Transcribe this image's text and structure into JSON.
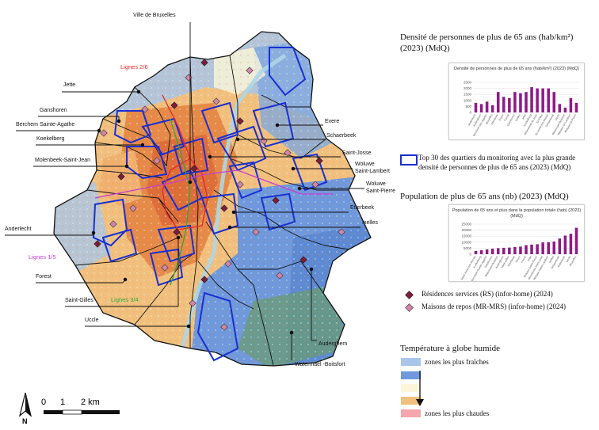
{
  "municipalities": [
    {
      "id": "ville-de-bruxelles",
      "name": "Ville de Bruxelles"
    },
    {
      "id": "jette",
      "name": "Jette"
    },
    {
      "id": "ganshoren",
      "name": "Ganshoren"
    },
    {
      "id": "berchem-sainte-agathe",
      "name": "Berchem Sainte-Agathe"
    },
    {
      "id": "koekelberg",
      "name": "Koekelberg"
    },
    {
      "id": "molenbeek-saint-jean",
      "name": "Molenbeek-Saint-Jean"
    },
    {
      "id": "anderlecht",
      "name": "Anderlecht"
    },
    {
      "id": "forest",
      "name": "Forest"
    },
    {
      "id": "saint-gilles",
      "name": "Saint-Gilles"
    },
    {
      "id": "uccle",
      "name": "Uccle"
    },
    {
      "id": "evere",
      "name": "Evere"
    },
    {
      "id": "schaerbeek",
      "name": "Schaerbeek"
    },
    {
      "id": "saint-josse",
      "name": "Saint-Josse"
    },
    {
      "id": "woluwe-saint-lambert",
      "name": "Woluwe\nSaint-Lambert"
    },
    {
      "id": "woluwe-saint-pierre",
      "name": "Woluwe\nSaint-Pierre"
    },
    {
      "id": "etterbeek",
      "name": "Etterbeek"
    },
    {
      "id": "ixelles",
      "name": "Ixelles"
    },
    {
      "id": "auderghem",
      "name": "Auderghem"
    },
    {
      "id": "watermael-boitsfort",
      "name": "Watermael -Boitsfort"
    }
  ],
  "metro_lines": [
    {
      "id": "lignes-2-6",
      "name": "Lignes 2/6",
      "color": "#e8262a"
    },
    {
      "id": "lignes-1-5",
      "name": "Lignes 1/5",
      "color": "#c53fd0"
    },
    {
      "id": "lignes-3-4",
      "name": "Lignes 3/4",
      "color": "#2ea83a"
    }
  ],
  "scale_bar": {
    "ticks": [
      "0",
      "1",
      "2 km"
    ]
  },
  "north_arrow": {
    "label": "N"
  },
  "density_section": {
    "title": "Densité de personnes de plus de 65 ans (hab/km²) (2023) (MdQ)",
    "chart_data": {
      "type": "bar",
      "title": "Densité de personnes de plus de 65 ans (hab/km²) (2023) (MdQ)",
      "yticks": [
        "2500",
        "2000",
        "1500",
        "1000",
        "500",
        "0"
      ],
      "ylim": [
        0,
        2500
      ],
      "bar_color": "#8e1a86",
      "categories": [
        "Anderlecht",
        "Auderghem",
        "Berchem-Ste-Agathe",
        "Bruxelles",
        "Etterbeek",
        "Evere",
        "Forest",
        "Ganshoren",
        "Ixelles",
        "Jette",
        "Koekelberg",
        "Molenbeek-St-Jean",
        "St-Gilles",
        "St-Josse-ten-Noode",
        "Schaerbeek",
        "Uccle",
        "Watermael-Boitsfort",
        "Woluwe-St-Lambert",
        "Woluwe-St-Pierre"
      ],
      "values": [
        800,
        700,
        900,
        600,
        1700,
        1300,
        1200,
        1700,
        1600,
        1700,
        2100,
        2000,
        2000,
        2000,
        1700,
        700,
        400,
        1200,
        800
      ]
    }
  },
  "top30_legend": "Top 30 des quartiers du monitoring avec la plus grande densité de personnes de plus de 65 ans (2023) (MdQ)",
  "population_section": {
    "title": "Population de plus de 65 ans (nb) (2023) (MdQ)",
    "chart_data": {
      "type": "bar",
      "title": "Population de 65 ans et plus dans la population totale (hab) (2023) (MdQ)",
      "yticks": [
        "25000",
        "20000",
        "15000",
        "10000",
        "5000",
        "0"
      ],
      "ylim": [
        0,
        25000
      ],
      "bar_color": "#8e1a86",
      "categories": [
        "Saint-Josse-ten-Noode",
        "Koekelberg",
        "Berchem-Sainte-Agathe",
        "Ganshoren",
        "Watermael-Boitsfort",
        "Auderghem",
        "Saint-Gilles",
        "Etterbeek",
        "Evere",
        "Forest",
        "Jette",
        "Woluwe-Saint-Pierre",
        "Molenbeek-Saint-Jean",
        "Woluwe-Saint-Lambert",
        "Ixelles",
        "Schaerbeek",
        "Anderlecht",
        "Uccle",
        "Bruxelles"
      ],
      "values": [
        2700,
        3300,
        4000,
        4600,
        5000,
        5300,
        5500,
        6000,
        6300,
        7500,
        8000,
        8300,
        9800,
        10000,
        10500,
        13000,
        15500,
        17000,
        22000
      ]
    }
  },
  "facilities_legend": [
    {
      "id": "rs",
      "label": "Résidences services (RS) (infor-home) (2024)",
      "color": "#7b1e3a"
    },
    {
      "id": "mr",
      "label": "Maisons de repos (MR-MRS) (infor-home) (2024)",
      "color": "#cf86a8"
    }
  ],
  "temperature_legend": {
    "title": "Température à globe humide",
    "coolest_label": "zones les plus fraîches",
    "hottest_label": "zones les plus chaudes",
    "swatches": [
      "#a9c5ea",
      "#6f99dc",
      "#fbf6d8",
      "#f1c07e",
      "#f4a7ad"
    ]
  },
  "colors": {
    "boundary": "#111111",
    "top30": "#1a2fd1"
  }
}
